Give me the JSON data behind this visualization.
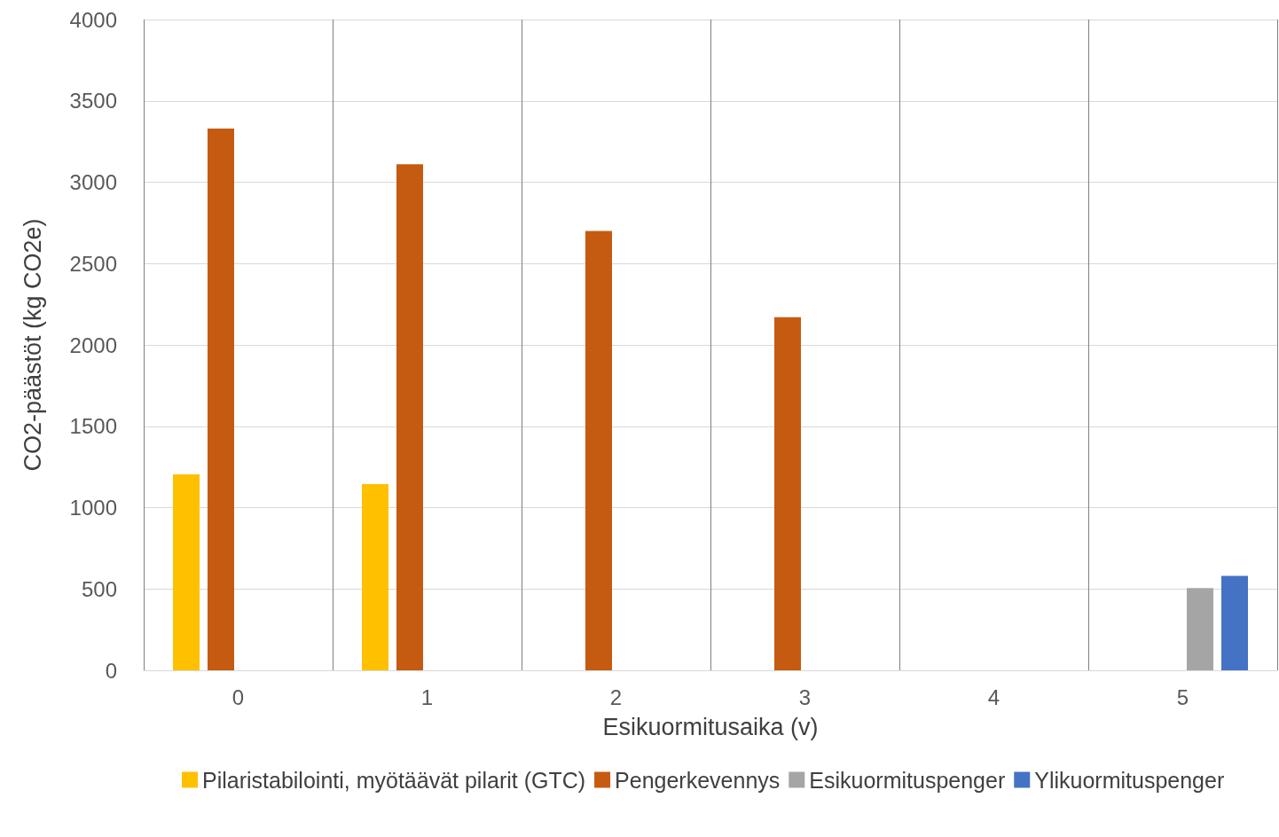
{
  "chart_data": {
    "type": "bar",
    "xlabel": "Esikuormitusaika (v)",
    "ylabel": "CO2-päästöt (kg CO2e)",
    "categories": [
      "0",
      "1",
      "2",
      "3",
      "4",
      "5"
    ],
    "series": [
      {
        "name": "Pilaristabilointi, myötäävät pilarit (GTC)",
        "color": "#ffc000",
        "values": [
          1205,
          1145,
          null,
          null,
          null,
          null
        ]
      },
      {
        "name": "Pengerkevennys",
        "color": "#c55a11",
        "values": [
          3330,
          3110,
          2700,
          2170,
          null,
          null
        ]
      },
      {
        "name": "Esikuormituspenger",
        "color": "#a5a5a5",
        "values": [
          null,
          null,
          null,
          null,
          null,
          505
        ]
      },
      {
        "name": "Ylikuormituspenger",
        "color": "#4472c4",
        "values": [
          null,
          null,
          null,
          null,
          null,
          580
        ]
      }
    ],
    "ylim": [
      0,
      4000
    ],
    "yticks": [
      0,
      500,
      1000,
      1500,
      2000,
      2500,
      3000,
      3500,
      4000
    ],
    "grid": true,
    "legend": "bottom"
  }
}
